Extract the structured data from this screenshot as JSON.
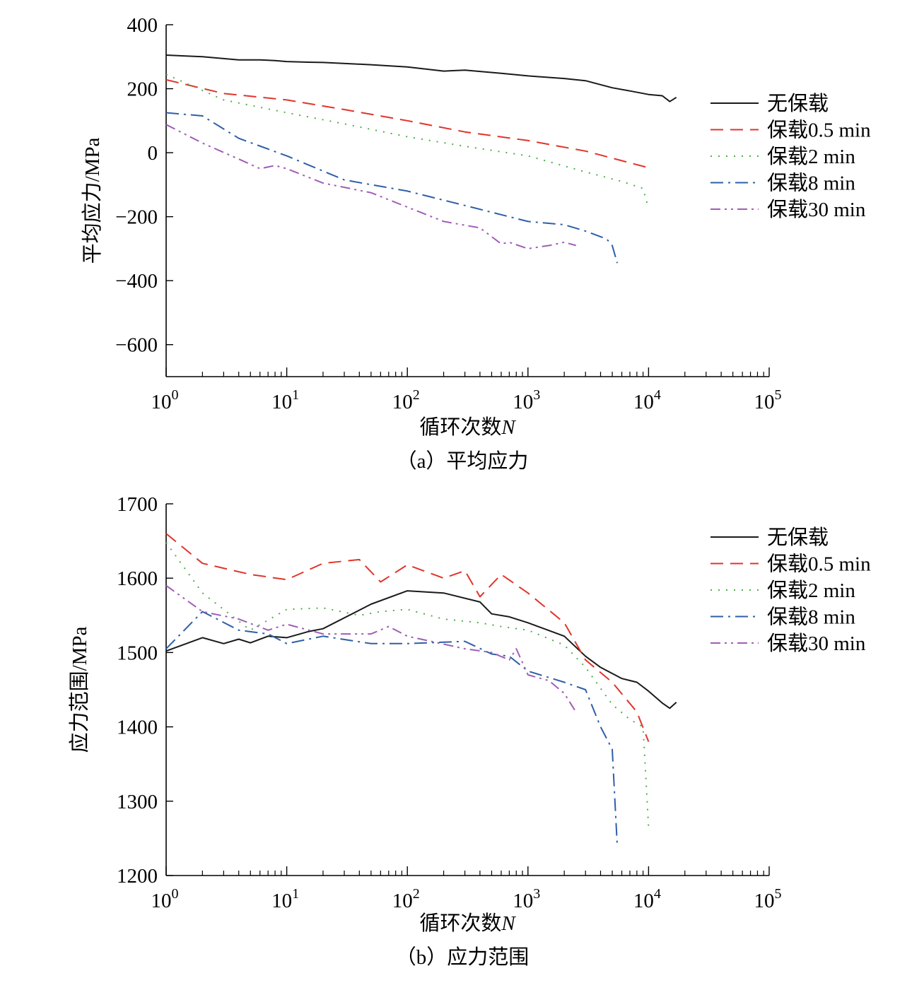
{
  "chart_data": [
    {
      "type": "line",
      "caption": "（a）平均应力",
      "xlabel": "循环次数",
      "xlabel_var": "N",
      "ylabel": "平均应力/MPa",
      "xscale": "log",
      "xlim": [
        1,
        100000
      ],
      "ylim": [
        -700,
        400
      ],
      "x_ticks": [
        {
          "base": "10",
          "exp": "0"
        },
        {
          "base": "10",
          "exp": "1"
        },
        {
          "base": "10",
          "exp": "2"
        },
        {
          "base": "10",
          "exp": "3"
        },
        {
          "base": "10",
          "exp": "4"
        },
        {
          "base": "10",
          "exp": "5"
        }
      ],
      "y_ticks": [
        {
          "value": 400,
          "label": "400"
        },
        {
          "value": 200,
          "label": "200"
        },
        {
          "value": 0,
          "label": "0"
        },
        {
          "value": -200,
          "label": "−200"
        },
        {
          "value": -400,
          "label": "−400"
        },
        {
          "value": -600,
          "label": "−600"
        }
      ],
      "legend_position": "right",
      "series": [
        {
          "name": "无保载",
          "color": "#1a1a1a",
          "dash": "solid",
          "x": [
            1,
            2,
            4,
            6,
            8,
            10,
            15,
            20,
            50,
            100,
            200,
            300,
            600,
            1000,
            2000,
            3000,
            5000,
            7000,
            10000,
            13000,
            15000,
            17000
          ],
          "y": [
            305,
            300,
            290,
            290,
            288,
            285,
            283,
            282,
            275,
            268,
            255,
            258,
            248,
            240,
            232,
            225,
            203,
            193,
            182,
            178,
            160,
            173
          ]
        },
        {
          "name": "保载0.5 min",
          "color": "#e0352b",
          "dash": "dashed",
          "x": [
            1,
            3,
            10,
            30,
            100,
            300,
            1000,
            3000,
            10000
          ],
          "y": [
            228,
            185,
            165,
            135,
            100,
            65,
            38,
            5,
            -47
          ]
        },
        {
          "name": "保载2 min",
          "color": "#4daf4a",
          "dash": "dotted",
          "x": [
            1,
            3,
            10,
            30,
            100,
            300,
            1000,
            3000,
            6000,
            9000,
            10000
          ],
          "y": [
            245,
            165,
            125,
            90,
            50,
            20,
            -10,
            -60,
            -90,
            -112,
            -175
          ]
        },
        {
          "name": "保载8 min",
          "color": "#2e5fa8",
          "dash": "dashdot",
          "x": [
            1,
            2,
            4,
            10,
            30,
            100,
            300,
            1000,
            2000,
            3000,
            4500,
            5000,
            5500
          ],
          "y": [
            125,
            115,
            45,
            -10,
            -85,
            -120,
            -165,
            -215,
            -225,
            -245,
            -270,
            -290,
            -345
          ]
        },
        {
          "name": "保载30 min",
          "color": "#a05eb5",
          "dash": "dashdotdot",
          "x": [
            1,
            2,
            4,
            6,
            8,
            10,
            20,
            50,
            100,
            200,
            400,
            600,
            700,
            1000,
            1500,
            2000,
            2500
          ],
          "y": [
            88,
            30,
            -20,
            -50,
            -40,
            -50,
            -95,
            -125,
            -170,
            -215,
            -235,
            -285,
            -280,
            -300,
            -290,
            -280,
            -290
          ]
        }
      ]
    },
    {
      "type": "line",
      "caption": "（b）应力范围",
      "xlabel": "循环次数",
      "xlabel_var": "N",
      "ylabel": "应力范围/MPa",
      "xscale": "log",
      "xlim": [
        1,
        100000
      ],
      "ylim": [
        1200,
        1700
      ],
      "x_ticks": [
        {
          "base": "10",
          "exp": "0"
        },
        {
          "base": "10",
          "exp": "1"
        },
        {
          "base": "10",
          "exp": "2"
        },
        {
          "base": "10",
          "exp": "3"
        },
        {
          "base": "10",
          "exp": "4"
        },
        {
          "base": "10",
          "exp": "5"
        }
      ],
      "y_ticks": [
        {
          "value": 1700,
          "label": "1700"
        },
        {
          "value": 1600,
          "label": "1600"
        },
        {
          "value": 1500,
          "label": "1500"
        },
        {
          "value": 1400,
          "label": "1400"
        },
        {
          "value": 1300,
          "label": "1300"
        },
        {
          "value": 1200,
          "label": "1200"
        }
      ],
      "legend_position": "right",
      "series": [
        {
          "name": "无保载",
          "color": "#1a1a1a",
          "dash": "solid",
          "x": [
            1,
            2,
            3,
            4,
            5,
            7,
            10,
            15,
            20,
            50,
            100,
            200,
            400,
            500,
            700,
            1000,
            2000,
            3000,
            4000,
            6000,
            8000,
            10000,
            13000,
            15000,
            17000
          ],
          "y": [
            1502,
            1520,
            1512,
            1518,
            1513,
            1522,
            1520,
            1528,
            1532,
            1565,
            1583,
            1580,
            1568,
            1552,
            1548,
            1540,
            1522,
            1495,
            1480,
            1465,
            1460,
            1448,
            1432,
            1425,
            1433
          ]
        },
        {
          "name": "保载0.5 min",
          "color": "#e0352b",
          "dash": "dashed",
          "x": [
            1,
            2,
            5,
            10,
            20,
            40,
            60,
            100,
            200,
            300,
            400,
            600,
            1000,
            2000,
            3000,
            5000,
            8000,
            10000
          ],
          "y": [
            1660,
            1620,
            1605,
            1598,
            1620,
            1625,
            1595,
            1618,
            1600,
            1610,
            1575,
            1605,
            1580,
            1540,
            1490,
            1460,
            1420,
            1380
          ]
        },
        {
          "name": "保载2 min",
          "color": "#4daf4a",
          "dash": "dotted",
          "x": [
            1,
            2,
            5,
            10,
            20,
            40,
            60,
            100,
            200,
            400,
            600,
            1000,
            2000,
            3000,
            5000,
            7000,
            9000,
            10000
          ],
          "y": [
            1648,
            1580,
            1530,
            1558,
            1560,
            1550,
            1555,
            1558,
            1545,
            1540,
            1535,
            1530,
            1510,
            1480,
            1430,
            1410,
            1400,
            1265
          ]
        },
        {
          "name": "保载8 min",
          "color": "#2e5fa8",
          "dash": "dashdot",
          "x": [
            1,
            2,
            4,
            7,
            10,
            20,
            50,
            100,
            300,
            500,
            700,
            1000,
            2000,
            3000,
            4000,
            5000,
            5500
          ],
          "y": [
            1505,
            1555,
            1530,
            1525,
            1512,
            1522,
            1512,
            1512,
            1515,
            1498,
            1495,
            1475,
            1460,
            1450,
            1400,
            1370,
            1240
          ]
        },
        {
          "name": "保载30 min",
          "color": "#a05eb5",
          "dash": "dashdotdot",
          "x": [
            1,
            2,
            4,
            7,
            10,
            20,
            50,
            70,
            100,
            300,
            500,
            700,
            800,
            1000,
            1500,
            2000,
            2500
          ],
          "y": [
            1590,
            1555,
            1545,
            1530,
            1538,
            1525,
            1525,
            1535,
            1522,
            1505,
            1500,
            1490,
            1505,
            1470,
            1462,
            1445,
            1420
          ]
        }
      ]
    }
  ]
}
